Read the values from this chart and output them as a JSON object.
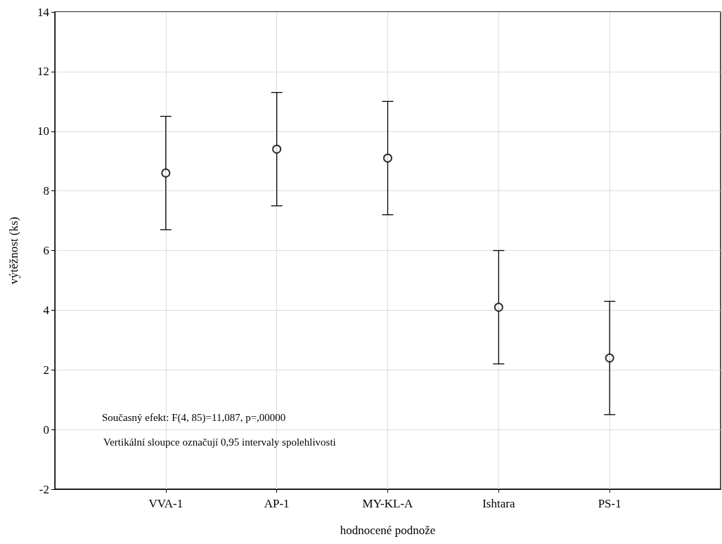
{
  "chart_data": {
    "type": "scatter",
    "xlabel": "hodnocené podnože",
    "ylabel": "výtěžnost (ks)",
    "categories": [
      "VVA-1",
      "AP-1",
      "MY-KL-A",
      "Ishtara",
      "PS-1"
    ],
    "series": [
      {
        "color": "#000000",
        "values": [
          8.6,
          9.4,
          9.1,
          4.1,
          2.4
        ],
        "errors": [
          1.9,
          1.9,
          1.9,
          1.9,
          1.9
        ]
      }
    ],
    "ylim": [
      -2,
      14
    ],
    "yticks": [
      -2,
      0,
      2,
      4,
      6,
      8,
      10,
      12,
      14
    ],
    "grid": true,
    "marker": "circle",
    "annotations": [
      "Současný efekt: F(4, 85)=11,087, p=,00000",
      "Vertikální sloupce označují 0,95 intervaly spolehlivosti"
    ]
  }
}
